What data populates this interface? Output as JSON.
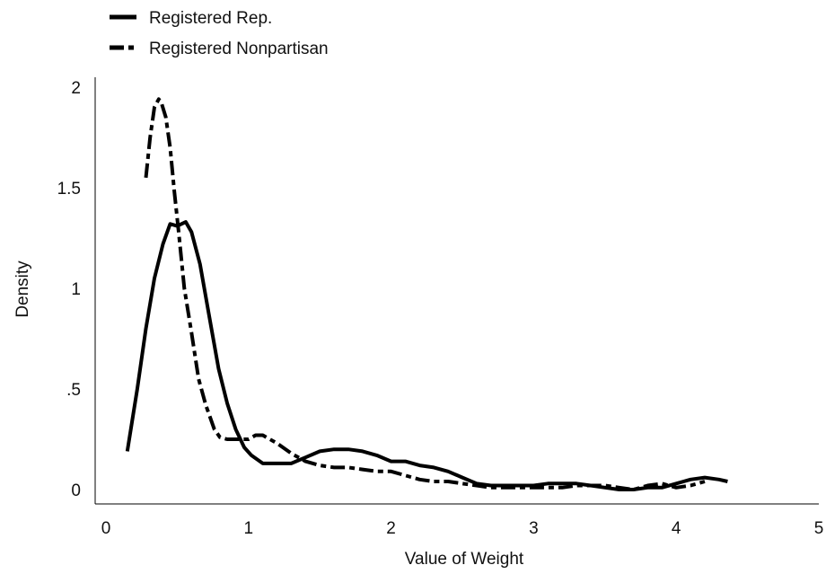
{
  "chart_data": {
    "type": "line",
    "title": "",
    "xlabel": "Value of Weight",
    "ylabel": "Density",
    "xlim": [
      0,
      5
    ],
    "ylim": [
      0,
      2
    ],
    "xticks": [
      0,
      1,
      2,
      3,
      4,
      5
    ],
    "xtick_labels": [
      "0",
      "1",
      "2",
      "3",
      "4",
      "5"
    ],
    "yticks": [
      0,
      0.5,
      1,
      1.5,
      2
    ],
    "ytick_labels": [
      "0",
      ".5",
      "1",
      "1.5",
      "2"
    ],
    "grid": false,
    "legend_position": "top-left",
    "series": [
      {
        "name": "Registered Rep.",
        "style": "solid",
        "color": "#000000",
        "x": [
          0.15,
          0.22,
          0.28,
          0.34,
          0.4,
          0.45,
          0.5,
          0.56,
          0.6,
          0.66,
          0.72,
          0.79,
          0.85,
          0.91,
          0.97,
          1.02,
          1.1,
          1.2,
          1.3,
          1.4,
          1.5,
          1.6,
          1.7,
          1.8,
          1.9,
          2.0,
          2.1,
          2.2,
          2.3,
          2.4,
          2.5,
          2.6,
          2.7,
          2.8,
          2.9,
          3.0,
          3.1,
          3.2,
          3.3,
          3.4,
          3.5,
          3.6,
          3.7,
          3.8,
          3.9,
          4.0,
          4.1,
          4.2,
          4.3,
          4.36
        ],
        "y": [
          0.19,
          0.5,
          0.8,
          1.05,
          1.22,
          1.32,
          1.31,
          1.33,
          1.28,
          1.12,
          0.88,
          0.6,
          0.43,
          0.3,
          0.21,
          0.17,
          0.13,
          0.13,
          0.13,
          0.16,
          0.19,
          0.2,
          0.2,
          0.19,
          0.17,
          0.14,
          0.14,
          0.12,
          0.11,
          0.09,
          0.06,
          0.03,
          0.02,
          0.02,
          0.02,
          0.02,
          0.03,
          0.03,
          0.03,
          0.02,
          0.01,
          0.0,
          0.0,
          0.01,
          0.01,
          0.03,
          0.05,
          0.06,
          0.05,
          0.04
        ]
      },
      {
        "name": "Registered Nonpartisan",
        "style": "dashed",
        "color": "#000000",
        "x": [
          0.28,
          0.31,
          0.34,
          0.37,
          0.39,
          0.42,
          0.45,
          0.48,
          0.51,
          0.55,
          0.6,
          0.65,
          0.7,
          0.76,
          0.8,
          0.85,
          0.9,
          0.95,
          1.0,
          1.05,
          1.1,
          1.15,
          1.2,
          1.3,
          1.4,
          1.5,
          1.6,
          1.7,
          1.8,
          1.9,
          2.0,
          2.1,
          2.2,
          2.3,
          2.4,
          2.5,
          2.6,
          2.7,
          2.8,
          2.9,
          3.0,
          3.1,
          3.2,
          3.3,
          3.4,
          3.5,
          3.6,
          3.7,
          3.8,
          3.9,
          4.0,
          4.1,
          4.2
        ],
        "y": [
          1.55,
          1.75,
          1.9,
          1.94,
          1.92,
          1.85,
          1.7,
          1.48,
          1.28,
          1.0,
          0.78,
          0.55,
          0.42,
          0.3,
          0.26,
          0.25,
          0.25,
          0.25,
          0.25,
          0.27,
          0.27,
          0.25,
          0.23,
          0.18,
          0.14,
          0.12,
          0.11,
          0.11,
          0.1,
          0.09,
          0.09,
          0.07,
          0.05,
          0.04,
          0.04,
          0.03,
          0.02,
          0.01,
          0.01,
          0.01,
          0.01,
          0.01,
          0.01,
          0.02,
          0.02,
          0.02,
          0.01,
          0.0,
          0.02,
          0.03,
          0.01,
          0.02,
          0.04
        ]
      }
    ]
  }
}
